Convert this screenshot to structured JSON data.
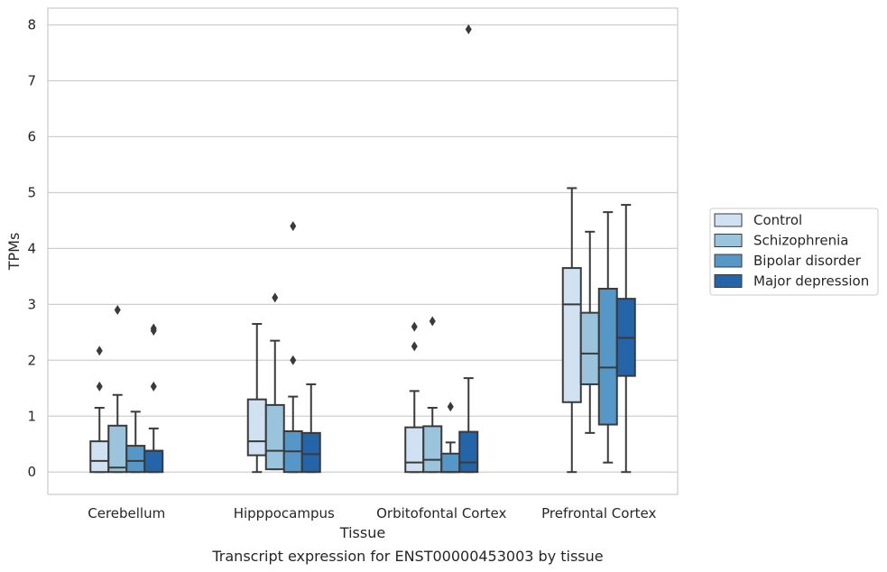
{
  "chart_data": {
    "type": "boxplot",
    "title": "Transcript expression for ENST00000453003 by tissue",
    "xlabel": "Tissue",
    "ylabel": "TPMs",
    "ylim": [
      -0.4,
      8.3
    ],
    "yticks": [
      0,
      1,
      2,
      3,
      4,
      5,
      6,
      7,
      8
    ],
    "grid": true,
    "legend_position": "right",
    "categories": [
      "Cerebellum",
      "Hipppocampus",
      "Orbitofontal Cortex",
      "Prefrontal Cortex"
    ],
    "series": [
      {
        "name": "Control",
        "color": "#d0e2f2",
        "boxes": [
          {
            "whislo": 0,
            "q1": 0,
            "med": 0.2,
            "q3": 0.55,
            "whishi": 1.15,
            "fliers": [
              1.53,
              2.17
            ]
          },
          {
            "whislo": 0,
            "q1": 0.3,
            "med": 0.55,
            "q3": 1.3,
            "whishi": 2.65,
            "fliers": []
          },
          {
            "whislo": 0,
            "q1": 0,
            "med": 0.17,
            "q3": 0.8,
            "whishi": 1.45,
            "fliers": [
              2.25,
              2.6
            ]
          },
          {
            "whislo": 0,
            "q1": 1.25,
            "med": 3.0,
            "q3": 3.65,
            "whishi": 5.08,
            "fliers": []
          }
        ]
      },
      {
        "name": "Schizophrenia",
        "color": "#9ac3dc",
        "boxes": [
          {
            "whislo": 0,
            "q1": 0,
            "med": 0.08,
            "q3": 0.83,
            "whishi": 1.38,
            "fliers": [
              2.9
            ]
          },
          {
            "whislo": 0.05,
            "q1": 0.05,
            "med": 0.38,
            "q3": 1.2,
            "whishi": 2.35,
            "fliers": [
              3.12
            ]
          },
          {
            "whislo": 0,
            "q1": 0,
            "med": 0.22,
            "q3": 0.82,
            "whishi": 1.15,
            "fliers": [
              2.7
            ]
          },
          {
            "whislo": 0.7,
            "q1": 1.57,
            "med": 2.12,
            "q3": 2.85,
            "whishi": 4.3,
            "fliers": []
          }
        ]
      },
      {
        "name": "Bipolar disorder",
        "color": "#5598c8",
        "boxes": [
          {
            "whislo": 0,
            "q1": 0,
            "med": 0.2,
            "q3": 0.47,
            "whishi": 1.08,
            "fliers": []
          },
          {
            "whislo": 0,
            "q1": 0,
            "med": 0.37,
            "q3": 0.73,
            "whishi": 1.35,
            "fliers": [
              2.0,
              4.4
            ]
          },
          {
            "whislo": 0,
            "q1": 0,
            "med": 0,
            "q3": 0.33,
            "whishi": 0.53,
            "fliers": [
              1.17
            ]
          },
          {
            "whislo": 0.17,
            "q1": 0.85,
            "med": 1.87,
            "q3": 3.28,
            "whishi": 4.65,
            "fliers": []
          }
        ]
      },
      {
        "name": "Major depression",
        "color": "#2464a8",
        "boxes": [
          {
            "whislo": 0,
            "q1": 0,
            "med": 0.38,
            "q3": 0.38,
            "whishi": 0.78,
            "fliers": [
              1.53,
              2.53,
              2.57
            ]
          },
          {
            "whislo": 0,
            "q1": 0,
            "med": 0.32,
            "q3": 0.7,
            "whishi": 1.57,
            "fliers": []
          },
          {
            "whislo": 0,
            "q1": 0,
            "med": 0.17,
            "q3": 0.72,
            "whishi": 1.68,
            "fliers": [
              7.92
            ]
          },
          {
            "whislo": 0,
            "q1": 1.72,
            "med": 2.4,
            "q3": 3.1,
            "whishi": 4.78,
            "fliers": []
          }
        ]
      }
    ]
  }
}
